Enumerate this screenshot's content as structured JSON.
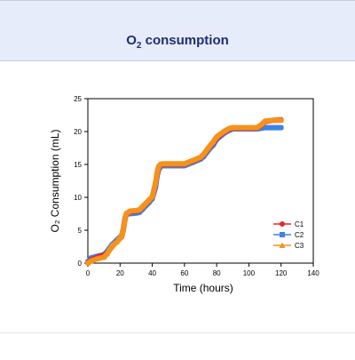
{
  "header": {
    "title_prefix": "O",
    "title_sub": "2",
    "title_suffix": " consumption"
  },
  "colors": {
    "header_bg": "#e6ecf9",
    "title": "#1d2f73",
    "C1": "#e8262b",
    "C2": "#3c83e3",
    "C3": "#f5921c"
  },
  "chart_data": {
    "type": "line",
    "xlabel": "Time (hours)",
    "ylabel": "O₂ Consumption (mL)",
    "xlim": [
      0,
      140
    ],
    "ylim": [
      0,
      25
    ],
    "x_ticks": [
      0,
      20,
      40,
      60,
      80,
      100,
      120,
      140
    ],
    "y_ticks": [
      0,
      5,
      10,
      15,
      20,
      25
    ],
    "grid": false,
    "legend_position": "lower-right",
    "series": [
      {
        "name": "C1",
        "marker": "circle",
        "color": "#e8262b",
        "x": [
          0,
          2,
          5,
          10,
          12,
          15,
          18,
          21,
          22,
          23,
          24,
          25,
          26,
          30,
          32,
          34,
          38,
          40,
          42,
          43,
          44,
          45,
          46,
          50,
          55,
          60,
          62,
          65,
          70,
          72,
          75,
          78,
          80,
          85,
          88,
          90,
          100,
          105,
          108,
          110,
          115,
          120
        ],
        "y": [
          0,
          0.5,
          0.8,
          1.2,
          1.5,
          2.5,
          3.3,
          4.0,
          5.0,
          6.5,
          7.5,
          7.6,
          7.8,
          7.9,
          8.0,
          8.5,
          9.5,
          10.0,
          12.0,
          13.5,
          14.5,
          14.9,
          15.0,
          15.0,
          15.0,
          15.0,
          15.2,
          15.5,
          16.0,
          16.5,
          17.5,
          18.3,
          19.0,
          20.0,
          20.4,
          20.5,
          20.5,
          20.5,
          21.0,
          21.5,
          21.7,
          21.8
        ]
      },
      {
        "name": "C2",
        "marker": "square",
        "color": "#3c83e3",
        "x": [
          0,
          2,
          5,
          10,
          12,
          15,
          18,
          21,
          22,
          23,
          24,
          25,
          26,
          30,
          32,
          34,
          38,
          40,
          42,
          43,
          44,
          45,
          46,
          50,
          55,
          60,
          62,
          65,
          70,
          72,
          75,
          78,
          80,
          85,
          88,
          90,
          100,
          105,
          108,
          110,
          115,
          120
        ],
        "y": [
          0.2,
          0.8,
          1.0,
          1.3,
          1.8,
          2.8,
          3.5,
          4.2,
          5.2,
          6.8,
          7.4,
          7.5,
          7.5,
          7.6,
          7.7,
          8.2,
          9.2,
          9.8,
          11.5,
          13.2,
          14.2,
          14.6,
          14.8,
          14.8,
          14.8,
          14.8,
          15.0,
          15.3,
          15.8,
          16.2,
          17.2,
          18.0,
          18.8,
          19.8,
          20.2,
          20.4,
          20.4,
          20.4,
          20.5,
          20.6,
          20.6,
          20.6
        ]
      },
      {
        "name": "C3",
        "marker": "triangle",
        "color": "#f5921c",
        "x": [
          0,
          2,
          5,
          10,
          12,
          15,
          18,
          21,
          22,
          23,
          24,
          25,
          26,
          30,
          32,
          34,
          38,
          40,
          42,
          43,
          44,
          45,
          46,
          50,
          55,
          60,
          62,
          65,
          70,
          72,
          75,
          78,
          80,
          85,
          88,
          90,
          100,
          105,
          108,
          110,
          115,
          120
        ],
        "y": [
          0,
          0.3,
          0.6,
          0.9,
          1.4,
          2.6,
          3.2,
          4.1,
          5.1,
          6.6,
          7.6,
          7.7,
          7.9,
          8.0,
          8.1,
          8.6,
          9.6,
          10.1,
          12.2,
          13.8,
          14.7,
          15.0,
          15.1,
          15.1,
          15.1,
          15.1,
          15.3,
          15.6,
          16.1,
          16.6,
          17.6,
          18.5,
          19.2,
          20.1,
          20.5,
          20.6,
          20.6,
          20.6,
          21.1,
          21.6,
          21.7,
          21.7
        ]
      }
    ]
  }
}
